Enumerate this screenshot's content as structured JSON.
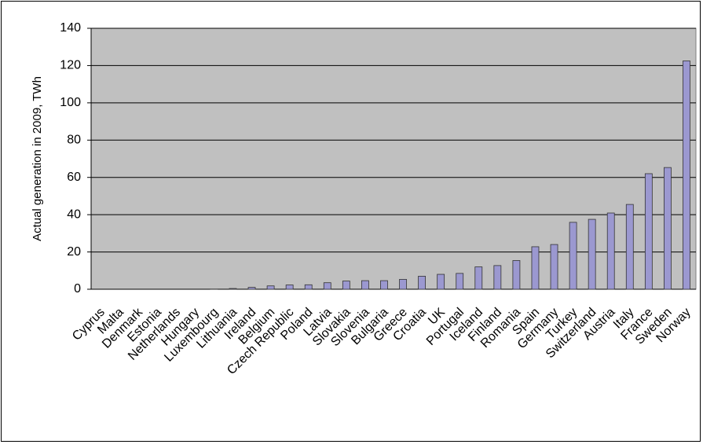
{
  "chart_data": {
    "type": "bar",
    "y_label": "Actual generation in 2009, TWh",
    "categories": [
      "Cyprus",
      "Malta",
      "Denmark",
      "Estonia",
      "Netherlands",
      "Hungary",
      "Luxembourg",
      "Lithuania",
      "Ireland",
      "Belgium",
      "Czech Republic",
      "Poland",
      "Latvia",
      "Slovakia",
      "Slovenia",
      "Bulgaria",
      "Greece",
      "Croatia",
      "UK",
      "Portugal",
      "Iceland",
      "Finland",
      "Romania",
      "Spain",
      "Germany",
      "Turkey",
      "Switzerland",
      "Austria",
      "Italy",
      "France",
      "Sweden",
      "Norway"
    ],
    "values": [
      0,
      0,
      0,
      0,
      0,
      0,
      0.1,
      0.4,
      1.0,
      1.8,
      2.3,
      2.4,
      3.5,
      4.4,
      4.6,
      4.6,
      5.3,
      7.0,
      8.0,
      8.5,
      12.0,
      12.7,
      15.4,
      22.8,
      24.0,
      35.9,
      37.5,
      40.9,
      45.5,
      62.0,
      65.3,
      122.5
    ],
    "color": "#9b98d0",
    "ylim": [
      0,
      140
    ],
    "yticks": [
      0,
      20,
      40,
      60,
      80,
      100,
      120,
      140
    ],
    "grid": true
  }
}
